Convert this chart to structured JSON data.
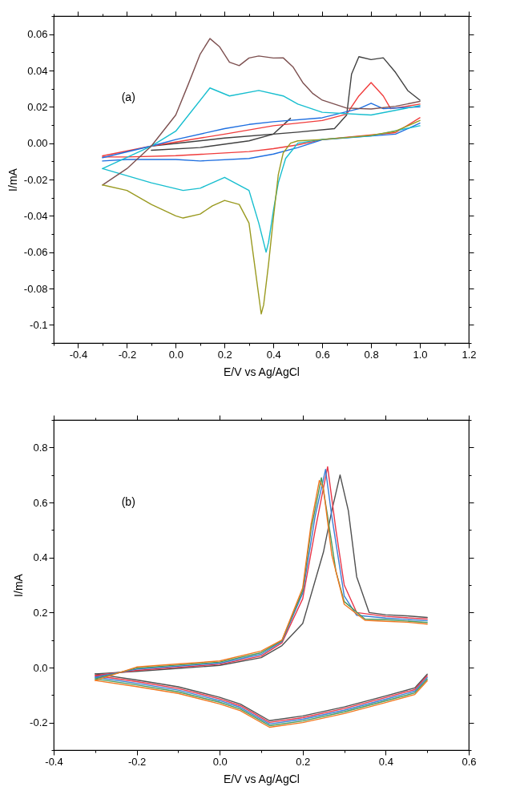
{
  "chart_data": [
    {
      "type": "line",
      "xlabel": "E/V vs Ag/AgCl",
      "ylabel": "I/mA",
      "annotations": [
        "(a)"
      ],
      "grid": false,
      "legend": false,
      "marker": "none",
      "line_style": "solid",
      "xlim": [
        -0.5,
        1.2
      ],
      "ylim": [
        -0.11,
        0.07
      ],
      "xticks": [
        {
          "value": -0.5,
          "label": null
        },
        -0.4,
        {
          "value": -0.3,
          "label": null
        },
        -0.2,
        {
          "value": -0.1,
          "label": null
        },
        {
          "value": 0,
          "label": "0.0"
        },
        {
          "value": 0.1,
          "label": null
        },
        0.2,
        {
          "value": 0.3,
          "label": null
        },
        0.4,
        {
          "value": 0.5,
          "label": null
        },
        0.6,
        {
          "value": 0.7,
          "label": null
        },
        0.8,
        {
          "value": 0.9,
          "label": null
        },
        {
          "value": 1,
          "label": "1.0"
        },
        {
          "value": 1.1,
          "label": null
        },
        1.2
      ],
      "yticks": [
        {
          "value": -0.11,
          "label": null
        },
        -0.1,
        {
          "value": -0.09,
          "label": null
        },
        -0.08,
        {
          "value": -0.07,
          "label": null
        },
        -0.06,
        {
          "value": -0.05,
          "label": null
        },
        -0.04,
        {
          "value": -0.03,
          "label": null
        },
        -0.02,
        {
          "value": -0.01,
          "label": null
        },
        {
          "value": 0,
          "label": "0.00"
        },
        {
          "value": 0.01,
          "label": null
        },
        0.02,
        {
          "value": 0.03,
          "label": null
        },
        0.04,
        {
          "value": 0.05,
          "label": null
        },
        0.06,
        {
          "value": 0.07,
          "label": null
        }
      ],
      "series": [
        {
          "color": "#404040",
          "x": [
            -0.1,
            0.1,
            0.3,
            0.4,
            0.47
          ],
          "values": [
            -0.0039,
            -0.0024,
            0.0013,
            0.005,
            0.0137
          ]
        },
        {
          "color": "#404040",
          "x": [
            -0.1,
            0.2,
            0.5,
            0.65,
            0.7,
            0.72,
            0.75,
            0.8,
            0.85,
            0.9,
            0.95,
            1.0
          ],
          "values": [
            -0.0016,
            0.0028,
            0.0061,
            0.008,
            0.0155,
            0.038,
            0.0476,
            0.046,
            0.047,
            0.039,
            0.029,
            0.0237
          ]
        },
        {
          "color": "#f03c3c",
          "x": [
            -0.3,
            -0.1,
            0.0,
            0.2,
            0.4,
            0.6,
            0.7,
            0.75,
            0.8,
            0.85,
            0.88,
            1.0
          ],
          "values": [
            -0.007,
            -0.0016,
            0.0006,
            0.005,
            0.0096,
            0.0125,
            0.016,
            0.026,
            0.0334,
            0.026,
            0.019,
            0.0215
          ]
        },
        {
          "color": "#f03c3c",
          "x": [
            -0.3,
            -0.2,
            0.0,
            0.3,
            0.4,
            0.5,
            0.6,
            0.9,
            1.0
          ],
          "values": [
            -0.0076,
            -0.0076,
            -0.0069,
            -0.0046,
            -0.003,
            -0.0009,
            0.002,
            0.0058,
            0.014
          ]
        },
        {
          "color": "#1f6fe0",
          "x": [
            -0.3,
            -0.1,
            0.0,
            0.2,
            0.3,
            0.4,
            0.6,
            0.75,
            0.8,
            0.85,
            1.0
          ],
          "values": [
            -0.008,
            -0.0016,
            0.002,
            0.008,
            0.0103,
            0.0118,
            0.014,
            0.019,
            0.022,
            0.019,
            0.02
          ]
        },
        {
          "color": "#1f6fe0",
          "x": [
            -0.3,
            -0.2,
            0.0,
            0.1,
            0.3,
            0.4,
            0.5,
            0.6,
            0.9,
            1.0
          ],
          "values": [
            -0.0098,
            -0.009,
            -0.009,
            -0.0098,
            -0.0084,
            -0.006,
            -0.0024,
            0.0019,
            0.005,
            0.011
          ]
        },
        {
          "color": "#17becf",
          "x": [
            -0.3,
            -0.1,
            0.0,
            0.14,
            0.22,
            0.34,
            0.44,
            0.5,
            0.6,
            0.8,
            1.0
          ],
          "values": [
            -0.014,
            -0.0016,
            0.0066,
            0.0304,
            0.026,
            0.029,
            0.026,
            0.0215,
            0.017,
            0.0155,
            0.0207
          ]
        },
        {
          "color": "#17becf",
          "x": [
            -0.3,
            -0.1,
            0.03,
            0.1,
            0.2,
            0.3,
            0.34,
            0.37,
            0.38,
            0.4,
            0.42,
            0.45,
            0.5,
            0.6,
            0.8,
            1.0
          ],
          "values": [
            -0.014,
            -0.0218,
            -0.026,
            -0.0248,
            -0.0188,
            -0.026,
            -0.044,
            -0.06,
            -0.0546,
            -0.037,
            -0.0218,
            -0.0084,
            0.0,
            0.0021,
            0.004,
            0.0096
          ]
        },
        {
          "color": "#7d5050",
          "x": [
            -0.3,
            -0.2,
            -0.1,
            0.0,
            0.05,
            0.1,
            0.14,
            0.18,
            0.22,
            0.26,
            0.3,
            0.34,
            0.4,
            0.44,
            0.48,
            0.52,
            0.56,
            0.6,
            0.7,
            0.8,
            0.9,
            1.0
          ],
          "values": [
            -0.023,
            -0.014,
            -0.0016,
            0.0155,
            0.032,
            0.049,
            0.0576,
            0.053,
            0.0446,
            0.0427,
            0.0469,
            0.048,
            0.0469,
            0.047,
            0.042,
            0.0334,
            0.0275,
            0.0237,
            0.0193,
            0.0188,
            0.0203,
            0.023
          ]
        },
        {
          "color": "#9a9a20",
          "x": [
            -0.3,
            -0.2,
            -0.1,
            0.0,
            0.03,
            0.1,
            0.15,
            0.2,
            0.26,
            0.3,
            0.33,
            0.35,
            0.36,
            0.38,
            0.4,
            0.42,
            0.44,
            0.47,
            0.5,
            0.6,
            0.7,
            0.8,
            0.9,
            1.0
          ],
          "values": [
            -0.023,
            -0.026,
            -0.0337,
            -0.04,
            -0.0412,
            -0.039,
            -0.0345,
            -0.0315,
            -0.0337,
            -0.044,
            -0.074,
            -0.094,
            -0.089,
            -0.0666,
            -0.041,
            -0.0173,
            -0.0054,
            0.0,
            0.0013,
            0.002,
            0.0031,
            0.0043,
            0.0066,
            0.0125
          ]
        }
      ]
    },
    {
      "type": "line",
      "xlabel": "E/V vs Ag/AgCl",
      "ylabel": "I/mA",
      "annotations": [
        "(b)"
      ],
      "grid": false,
      "legend": false,
      "marker": "none",
      "line_style": "solid",
      "xlim": [
        -0.4,
        0.6
      ],
      "ylim": [
        -0.3,
        0.9
      ],
      "xticks": [
        -0.4,
        {
          "value": -0.3,
          "label": null
        },
        -0.2,
        {
          "value": -0.1,
          "label": null
        },
        {
          "value": 0,
          "label": "0.0"
        },
        {
          "value": 0.1,
          "label": null
        },
        0.2,
        {
          "value": 0.3,
          "label": null
        },
        0.4,
        {
          "value": 0.5,
          "label": null
        },
        0.6
      ],
      "yticks": [
        {
          "value": -0.3,
          "label": null
        },
        -0.2,
        {
          "value": -0.1,
          "label": null
        },
        {
          "value": 0,
          "label": "0.0"
        },
        {
          "value": 0.1,
          "label": null
        },
        0.2,
        {
          "value": 0.3,
          "label": null
        },
        0.4,
        {
          "value": 0.5,
          "label": null
        },
        0.6,
        {
          "value": 0.7,
          "label": null
        },
        0.8,
        {
          "value": 0.9,
          "label": null
        }
      ],
      "series": [
        {
          "color": "#505050",
          "x": [
            -0.3,
            -0.2,
            -0.1,
            0.0,
            0.1,
            0.15,
            0.2,
            0.25,
            0.27,
            0.29,
            0.31,
            0.33,
            0.36,
            0.4,
            0.45,
            0.5
          ],
          "values": [
            -0.023,
            -0.014,
            -0.003,
            0.008,
            0.036,
            0.08,
            0.16,
            0.42,
            0.57,
            0.7,
            0.57,
            0.33,
            0.2,
            0.192,
            0.188,
            0.182
          ]
        },
        {
          "color": "#505050",
          "x": [
            -0.3,
            -0.2,
            -0.1,
            0.0,
            0.05,
            0.12,
            0.2,
            0.3,
            0.4,
            0.47,
            0.5
          ],
          "values": [
            -0.023,
            -0.045,
            -0.07,
            -0.108,
            -0.133,
            -0.193,
            -0.176,
            -0.143,
            -0.103,
            -0.074,
            -0.024
          ]
        },
        {
          "color": "#e8374a",
          "x": [
            -0.3,
            -0.2,
            -0.1,
            0.0,
            0.1,
            0.15,
            0.2,
            0.23,
            0.26,
            0.28,
            0.3,
            0.33,
            0.4,
            0.5
          ],
          "values": [
            -0.029,
            -0.01,
            0.001,
            0.012,
            0.042,
            0.09,
            0.25,
            0.5,
            0.73,
            0.5,
            0.3,
            0.2,
            0.186,
            0.176
          ]
        },
        {
          "color": "#e8374a",
          "x": [
            -0.3,
            -0.2,
            -0.1,
            0.0,
            0.05,
            0.12,
            0.2,
            0.3,
            0.4,
            0.47,
            0.5
          ],
          "values": [
            -0.029,
            -0.051,
            -0.076,
            -0.114,
            -0.139,
            -0.199,
            -0.182,
            -0.149,
            -0.109,
            -0.08,
            -0.03
          ]
        },
        {
          "color": "#3a7fd5",
          "x": [
            -0.3,
            -0.2,
            -0.1,
            0.0,
            0.1,
            0.15,
            0.2,
            0.23,
            0.255,
            0.27,
            0.3,
            0.33,
            0.4,
            0.5
          ],
          "values": [
            -0.035,
            -0.006,
            0.005,
            0.016,
            0.048,
            0.095,
            0.27,
            0.55,
            0.72,
            0.55,
            0.26,
            0.19,
            0.18,
            0.17
          ]
        },
        {
          "color": "#3a7fd5",
          "x": [
            -0.3,
            -0.2,
            -0.1,
            0.0,
            0.05,
            0.12,
            0.2,
            0.3,
            0.4,
            0.47,
            0.5
          ],
          "values": [
            -0.035,
            -0.057,
            -0.082,
            -0.12,
            -0.145,
            -0.205,
            -0.188,
            -0.155,
            -0.115,
            -0.086,
            -0.036
          ]
        },
        {
          "color": "#4a9a5a",
          "x": [
            -0.3,
            -0.2,
            -0.1,
            0.0,
            0.1,
            0.15,
            0.2,
            0.22,
            0.245,
            0.26,
            0.28,
            0.3,
            0.35,
            0.4,
            0.5
          ],
          "values": [
            -0.041,
            -0.002,
            0.009,
            0.02,
            0.054,
            0.098,
            0.28,
            0.5,
            0.69,
            0.55,
            0.35,
            0.24,
            0.176,
            0.174,
            0.164
          ]
        },
        {
          "color": "#4a9a5a",
          "x": [
            -0.3,
            -0.2,
            -0.1,
            0.0,
            0.05,
            0.12,
            0.2,
            0.3,
            0.4,
            0.47,
            0.5
          ],
          "values": [
            -0.041,
            -0.063,
            -0.088,
            -0.126,
            -0.151,
            -0.211,
            -0.194,
            -0.161,
            -0.121,
            -0.092,
            -0.042
          ]
        },
        {
          "color": "#f07820",
          "x": [
            -0.3,
            -0.2,
            -0.1,
            0.0,
            0.1,
            0.15,
            0.2,
            0.22,
            0.24,
            0.25,
            0.27,
            0.3,
            0.35,
            0.4,
            0.45,
            0.5
          ],
          "values": [
            -0.047,
            0.002,
            0.013,
            0.024,
            0.06,
            0.1,
            0.29,
            0.52,
            0.68,
            0.65,
            0.41,
            0.23,
            0.172,
            0.168,
            0.165,
            0.158
          ]
        },
        {
          "color": "#f07820",
          "x": [
            -0.3,
            -0.2,
            -0.1,
            0.0,
            0.05,
            0.12,
            0.2,
            0.3,
            0.4,
            0.47,
            0.5
          ],
          "values": [
            -0.047,
            -0.069,
            -0.094,
            -0.132,
            -0.157,
            -0.217,
            -0.2,
            -0.167,
            -0.127,
            -0.098,
            -0.048
          ]
        }
      ]
    }
  ]
}
